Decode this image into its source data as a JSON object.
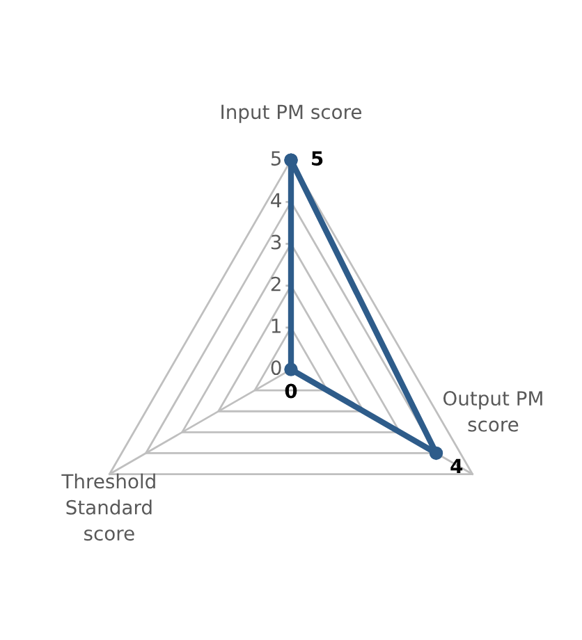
{
  "chart_data": {
    "type": "radar",
    "categories": [
      "Input PM score",
      "Output PM\nscore",
      "Threshold\nStandard\nscore"
    ],
    "series": [
      {
        "color": "#2e5c8a",
        "values": [
          5,
          4,
          0
        ]
      }
    ],
    "ylim": [
      0,
      5
    ],
    "yticks": [
      0,
      1,
      2,
      3,
      4,
      5
    ],
    "marker": "circle",
    "line_style": "solid",
    "data_labels": true,
    "grid": true,
    "legend": false
  }
}
